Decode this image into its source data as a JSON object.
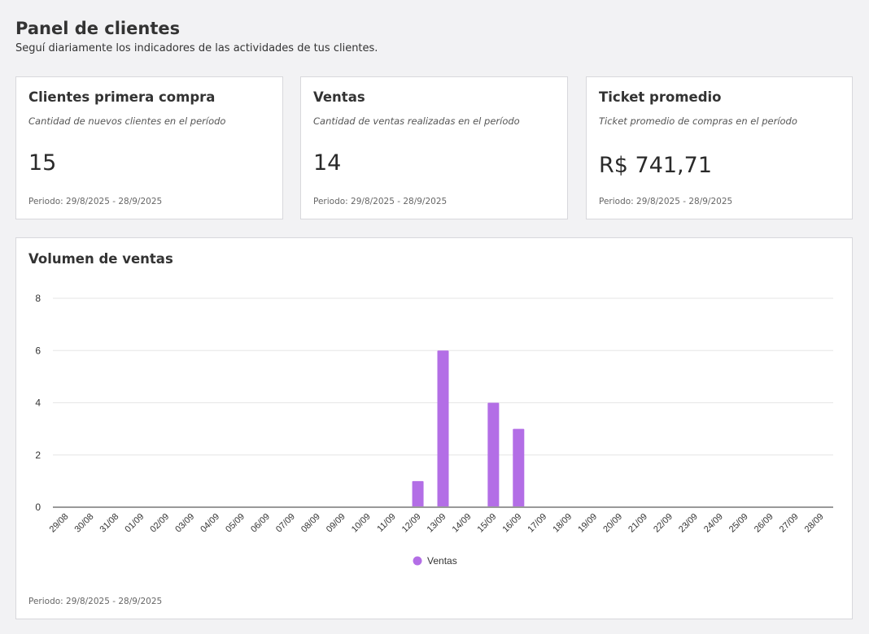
{
  "header": {
    "title": "Panel de clientes",
    "subtitle": "Seguí diariamente los indicadores de las actividades de tus clientes."
  },
  "cards": [
    {
      "title": "Clientes primera compra",
      "description": "Cantidad de nuevos clientes en el período",
      "value": "15",
      "period": "Periodo: 29/8/2025 - 28/9/2025"
    },
    {
      "title": "Ventas",
      "description": "Cantidad de ventas realizadas en el período",
      "value": "14",
      "period": "Periodo: 29/8/2025 - 28/9/2025"
    },
    {
      "title": "Ticket promedio",
      "description": "Ticket promedio de compras en el período",
      "value": "R$ 741,71",
      "period": "Periodo: 29/8/2025 - 28/9/2025"
    }
  ],
  "chart_card": {
    "title": "Volumen de ventas",
    "period": "Periodo: 29/8/2025 - 28/9/2025"
  },
  "chart_data": {
    "type": "bar",
    "categories": [
      "29/08",
      "30/08",
      "31/08",
      "01/09",
      "02/09",
      "03/09",
      "04/09",
      "05/09",
      "06/09",
      "07/09",
      "08/09",
      "09/09",
      "10/09",
      "11/09",
      "12/09",
      "13/09",
      "14/09",
      "15/09",
      "16/09",
      "17/09",
      "18/09",
      "19/09",
      "20/09",
      "21/09",
      "22/09",
      "23/09",
      "24/09",
      "25/09",
      "26/09",
      "27/09",
      "28/09"
    ],
    "series": [
      {
        "name": "Ventas",
        "values": [
          0,
          0,
          0,
          0,
          0,
          0,
          0,
          0,
          0,
          0,
          0,
          0,
          0,
          0,
          1,
          6,
          0,
          4,
          3,
          0,
          0,
          0,
          0,
          0,
          0,
          0,
          0,
          0,
          0,
          0,
          0
        ],
        "color": "#b36ee6"
      }
    ],
    "yticks": [
      0,
      2,
      4,
      6,
      8
    ],
    "ylim": [
      0,
      8
    ],
    "grid": true,
    "legend": "bottom"
  }
}
